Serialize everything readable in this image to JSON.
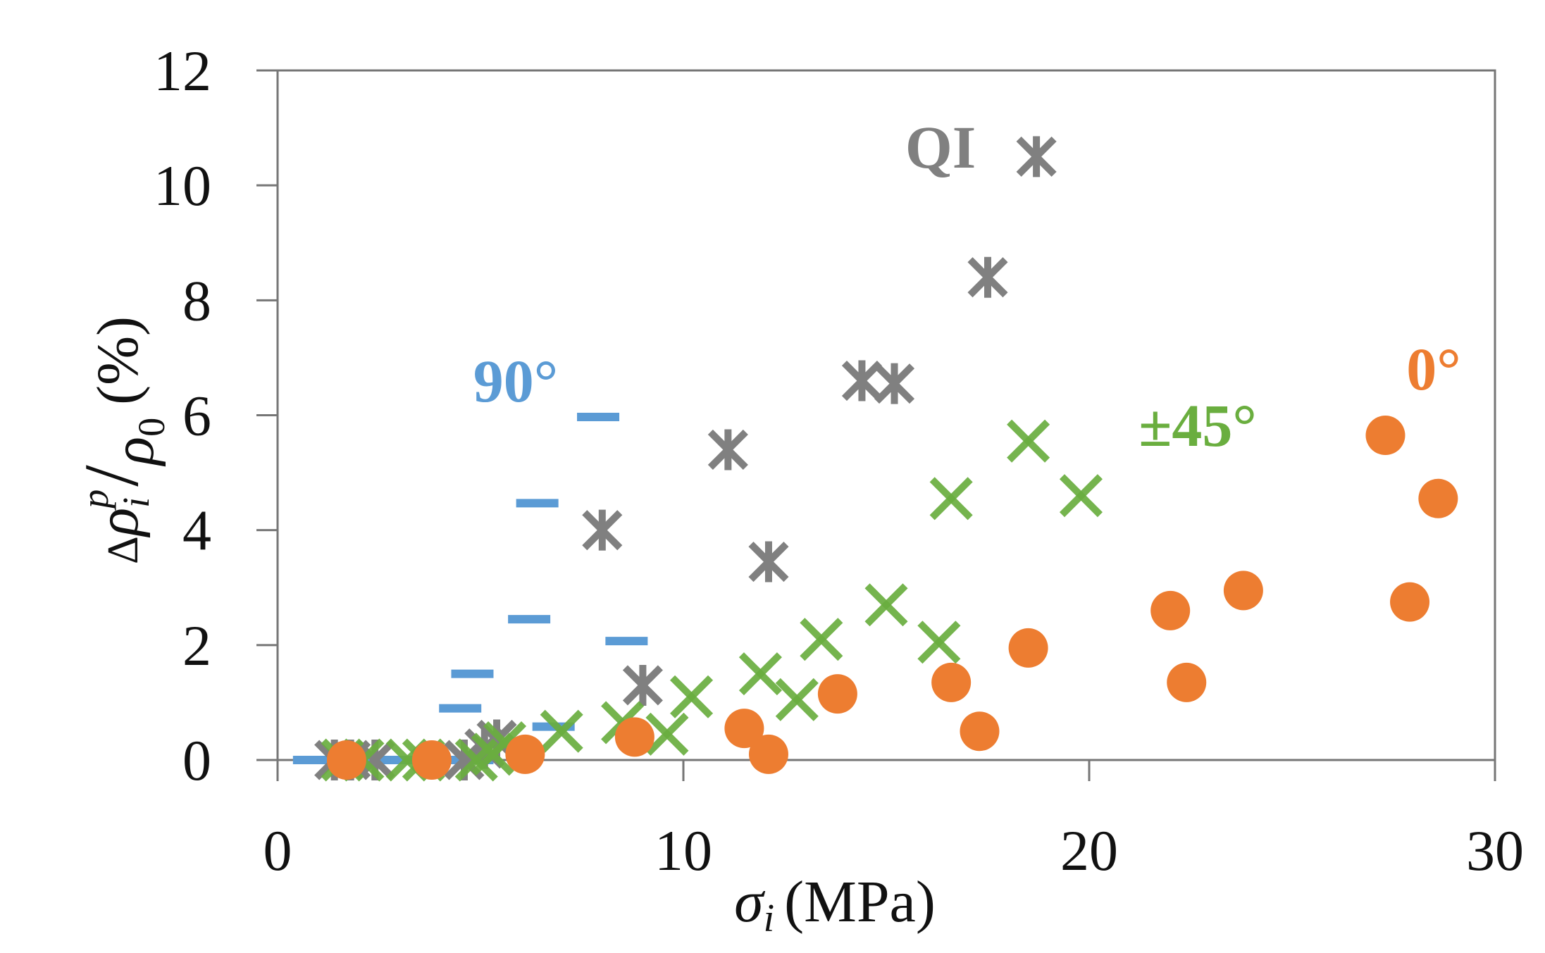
{
  "chart_data": {
    "type": "scatter",
    "title": "",
    "xlabel": "σi (MPa)",
    "xlabel_parts": {
      "symbol": "σ",
      "subscript": "i",
      "unit": "(MPa)"
    },
    "ylabel": "Δρi^p / ρ0 (%)",
    "ylabel_parts": {
      "delta": "Δ",
      "rho": "ρ",
      "sub_i": "i",
      "sup_p": "p",
      "slash": "/",
      "rho0": "ρ",
      "sub_0": "0",
      "unit": "(%)"
    },
    "xlim": [
      0,
      30
    ],
    "ylim": [
      0,
      12
    ],
    "x_ticks": [
      0,
      10,
      20,
      30
    ],
    "x_tick_labels": [
      "0",
      "10",
      "20",
      "30"
    ],
    "y_ticks": [
      0,
      2,
      4,
      6,
      8,
      10,
      12
    ],
    "y_tick_labels": [
      "0",
      "2",
      "4",
      "6",
      "8",
      "10",
      "12"
    ],
    "grid": false,
    "legend": "none (inline series labels)",
    "series": [
      {
        "name": "90°",
        "label": "90°",
        "color": "#5B9BD5",
        "marker": "dash",
        "points": [
          [
            0.9,
            0.0
          ],
          [
            1.2,
            0.0
          ],
          [
            1.5,
            0.0
          ],
          [
            1.8,
            0.0
          ],
          [
            2.1,
            0.0
          ],
          [
            2.4,
            0.0
          ],
          [
            2.7,
            0.0
          ],
          [
            3.0,
            0.0
          ],
          [
            3.3,
            0.0
          ],
          [
            3.6,
            0.0
          ],
          [
            3.9,
            0.0
          ],
          [
            4.2,
            0.0
          ],
          [
            4.5,
            0.0
          ],
          [
            4.8,
            0.0
          ],
          [
            4.5,
            0.9
          ],
          [
            4.8,
            1.5
          ],
          [
            6.2,
            2.45
          ],
          [
            6.4,
            4.47
          ],
          [
            6.8,
            0.58
          ],
          [
            7.9,
            5.97
          ],
          [
            8.6,
            2.07
          ]
        ]
      },
      {
        "name": "QI",
        "label": "QI",
        "color": "#808080",
        "marker": "asterisk",
        "points": [
          [
            1.4,
            0.0
          ],
          [
            1.8,
            0.0
          ],
          [
            2.4,
            0.0
          ],
          [
            4.6,
            0.0
          ],
          [
            5.1,
            0.2
          ],
          [
            5.4,
            0.35
          ],
          [
            8.0,
            4.0
          ],
          [
            9.0,
            1.3
          ],
          [
            11.1,
            5.4
          ],
          [
            12.1,
            3.45
          ],
          [
            14.4,
            6.6
          ],
          [
            15.2,
            6.55
          ],
          [
            17.5,
            8.4
          ],
          [
            18.7,
            10.5
          ]
        ]
      },
      {
        "name": "±45°",
        "label": "±45°",
        "color": "#6AAE3F",
        "marker": "x",
        "points": [
          [
            1.6,
            0.0
          ],
          [
            2.1,
            0.0
          ],
          [
            3.2,
            0.0
          ],
          [
            3.6,
            0.0
          ],
          [
            4.9,
            0.0
          ],
          [
            5.3,
            0.1
          ],
          [
            5.6,
            0.3
          ],
          [
            7.0,
            0.5
          ],
          [
            8.5,
            0.65
          ],
          [
            9.6,
            0.45
          ],
          [
            10.2,
            1.1
          ],
          [
            11.9,
            1.5
          ],
          [
            12.8,
            1.05
          ],
          [
            13.4,
            2.1
          ],
          [
            15.0,
            2.7
          ],
          [
            16.3,
            2.05
          ],
          [
            16.6,
            4.55
          ],
          [
            18.5,
            5.55
          ],
          [
            19.8,
            4.6
          ]
        ]
      },
      {
        "name": "0°",
        "label": "0°",
        "color": "#ED7D31",
        "marker": "circle",
        "points": [
          [
            1.7,
            0.0
          ],
          [
            3.8,
            0.0
          ],
          [
            6.1,
            0.1
          ],
          [
            8.8,
            0.4
          ],
          [
            11.5,
            0.55
          ],
          [
            12.1,
            0.1
          ],
          [
            13.8,
            1.15
          ],
          [
            16.6,
            1.35
          ],
          [
            17.3,
            0.5
          ],
          [
            18.5,
            1.95
          ],
          [
            22.0,
            2.6
          ],
          [
            22.4,
            1.35
          ],
          [
            23.8,
            2.95
          ],
          [
            27.3,
            5.65
          ],
          [
            27.9,
            2.75
          ],
          [
            28.6,
            4.55
          ]
        ]
      }
    ]
  }
}
